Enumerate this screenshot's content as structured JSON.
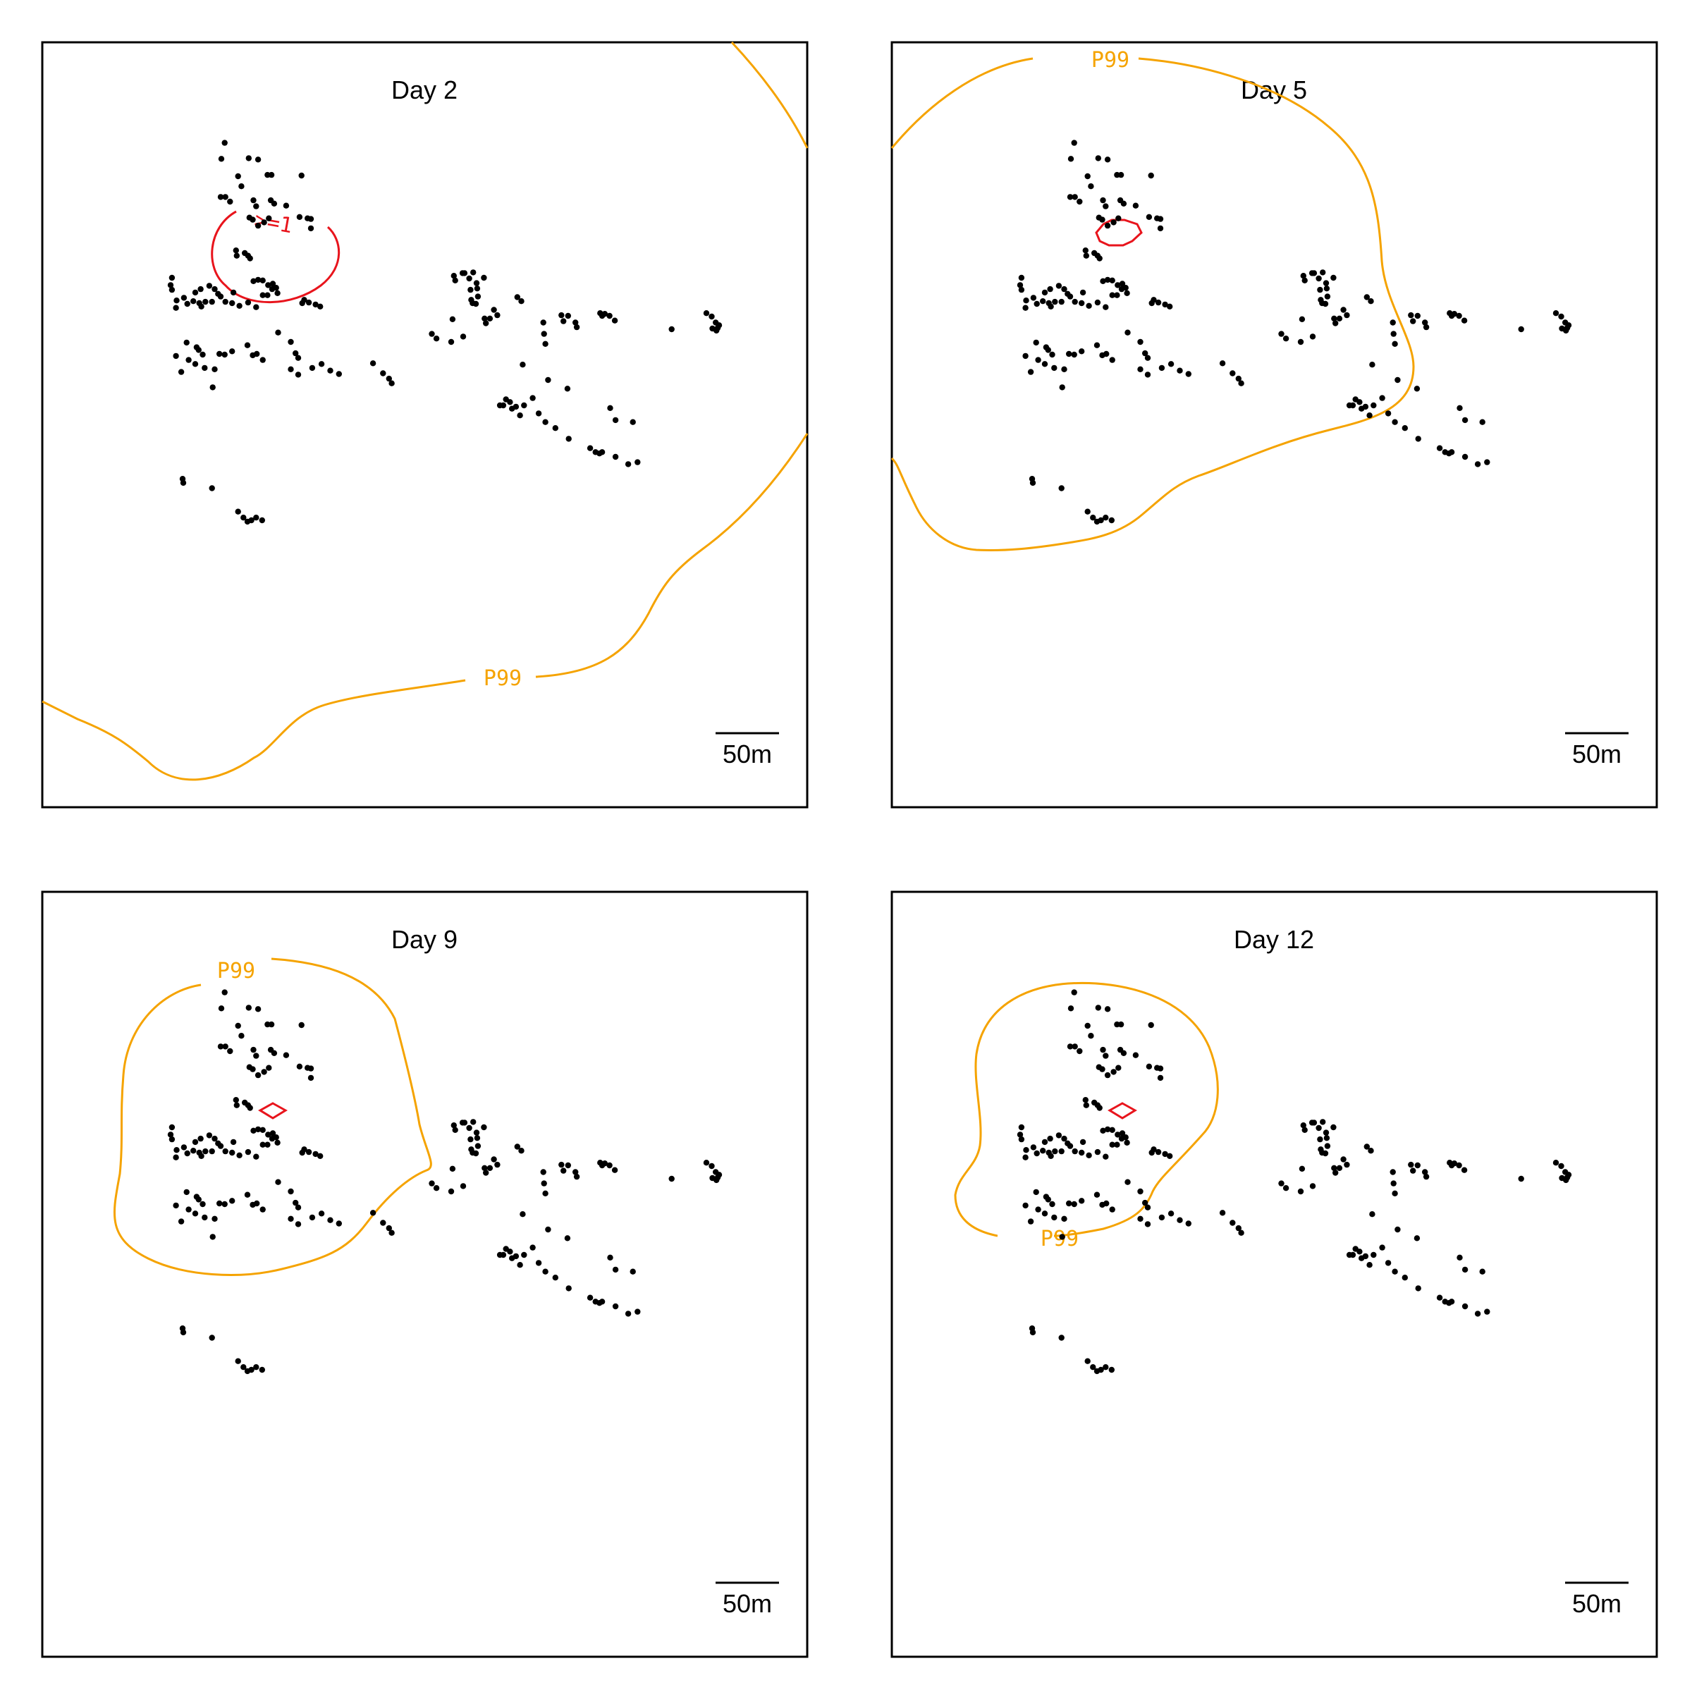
{
  "chart_data": [
    {
      "type": "scatter",
      "title": "Day 2",
      "scale_label": "50m",
      "contour_labels": {
        "outer": "P99",
        "inner": ">=1"
      },
      "colors": {
        "outer": "#f5a300",
        "inner": "#e8141c",
        "points": "#000000"
      }
    },
    {
      "type": "scatter",
      "title": "Day 5",
      "scale_label": "50m",
      "contour_labels": {
        "outer": "P99",
        "inner": ""
      },
      "colors": {
        "outer": "#f5a300",
        "inner": "#e8141c",
        "points": "#000000"
      }
    },
    {
      "type": "scatter",
      "title": "Day 9",
      "scale_label": "50m",
      "contour_labels": {
        "outer": "P99",
        "inner": ""
      },
      "colors": {
        "outer": "#f5a300",
        "inner": "#e8141c",
        "points": "#000000"
      }
    },
    {
      "type": "scatter",
      "title": "Day 12",
      "scale_label": "50m",
      "contour_labels": {
        "outer": "P99",
        "inner": ""
      },
      "colors": {
        "outer": "#f5a300",
        "inner": "#e8141c",
        "points": "#000000"
      }
    }
  ]
}
